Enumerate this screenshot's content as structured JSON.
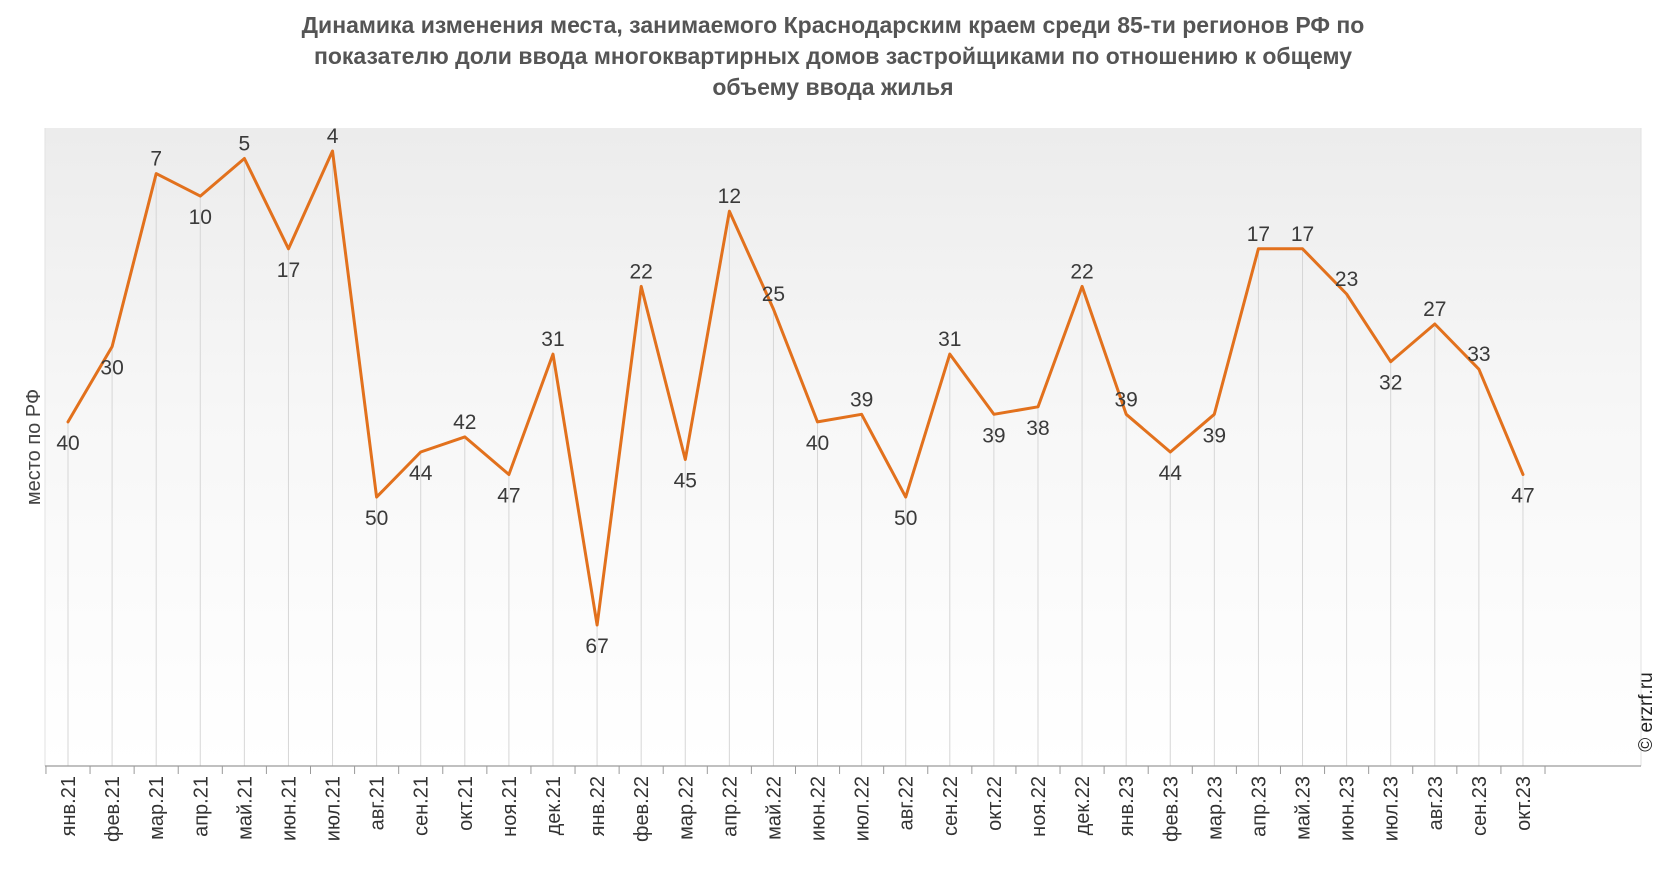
{
  "chart_data": {
    "type": "line",
    "title_lines": [
      "Динамика изменения места, занимаемого Краснодарским краем среди 85-ти регионов РФ по",
      "показателю доли ввода многоквартирных домов застройщиками по отношению к общему",
      "объему ввода жилья"
    ],
    "ylabel": "место по РФ",
    "xlabel": "",
    "y_axis_inverted": true,
    "ylim": [
      85,
      0
    ],
    "grid": false,
    "categories": [
      "янв.21",
      "фев.21",
      "мар.21",
      "апр.21",
      "май.21",
      "июн.21",
      "июл.21",
      "авг.21",
      "сен.21",
      "окт.21",
      "ноя.21",
      "дек.21",
      "янв.22",
      "фев.22",
      "мар.22",
      "апр.22",
      "май.22",
      "июн.22",
      "июл.22",
      "авг.22",
      "сен.22",
      "окт.22",
      "ноя.22",
      "дек.22",
      "янв.23",
      "фев.23",
      "мар.23",
      "апр.23",
      "май.23",
      "июн.23",
      "июл.23",
      "авг.23",
      "сен.23",
      "окт.23"
    ],
    "series": [
      {
        "color": "#E2711D",
        "values": [
          40,
          30,
          7,
          10,
          5,
          17,
          4,
          50,
          44,
          42,
          47,
          31,
          67,
          22,
          45,
          12,
          25,
          40,
          39,
          50,
          31,
          39,
          38,
          22,
          39,
          44,
          39,
          17,
          17,
          23,
          32,
          27,
          33,
          47
        ]
      }
    ]
  },
  "credit": "© erzrf.ru"
}
